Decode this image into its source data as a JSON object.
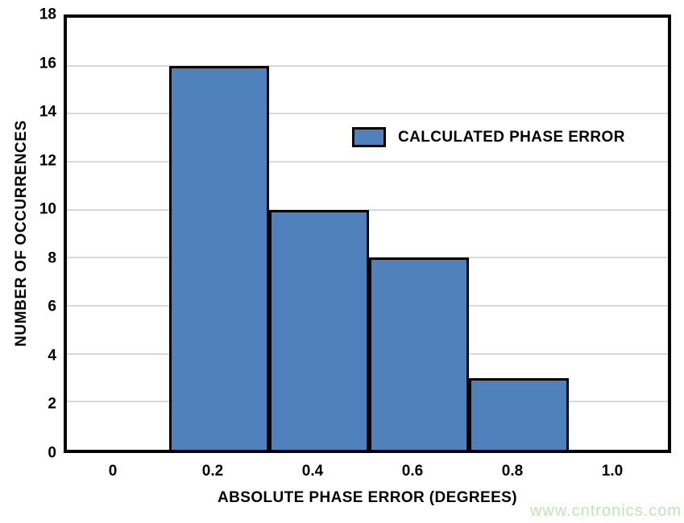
{
  "chart_data": {
    "type": "bar",
    "title": "",
    "xlabel": "ABSOLUTE PHASE ERROR (DEGREES)",
    "ylabel": "NUMBER OF OCCURRENCES",
    "x_ticks": [
      {
        "label": "0",
        "value": 0
      },
      {
        "label": "0.2",
        "value": 0.2
      },
      {
        "label": "0.4",
        "value": 0.4
      },
      {
        "label": "0.6",
        "value": 0.6
      },
      {
        "label": "0.8",
        "value": 0.8
      },
      {
        "label": "1.0",
        "value": 1.0
      }
    ],
    "y_ticks": [
      0,
      2,
      4,
      6,
      8,
      10,
      12,
      14,
      16,
      18
    ],
    "ylim": [
      0,
      18
    ],
    "xlim": [
      -0.1,
      1.12
    ],
    "bin_width": 0.2,
    "bars": [
      {
        "bin_center": 0.2,
        "count": 16
      },
      {
        "bin_center": 0.4,
        "count": 10
      },
      {
        "bin_center": 0.6,
        "count": 8
      },
      {
        "bin_center": 0.8,
        "count": 3
      }
    ],
    "grid": "horizontal",
    "legend": {
      "position": "inside-upper-right",
      "entries": [
        {
          "label": "CALCULATED PHASE ERROR",
          "color": "#4f81bd"
        }
      ]
    },
    "colors": {
      "bar_fill": "#4f81bd",
      "bar_border": "#000000",
      "gridline": "#d9d9d9",
      "axis_border": "#000000",
      "text": "#000000",
      "background": "#ffffff"
    }
  },
  "watermark": {
    "text": "www.cntronics.com",
    "color": "#bce8b2"
  }
}
